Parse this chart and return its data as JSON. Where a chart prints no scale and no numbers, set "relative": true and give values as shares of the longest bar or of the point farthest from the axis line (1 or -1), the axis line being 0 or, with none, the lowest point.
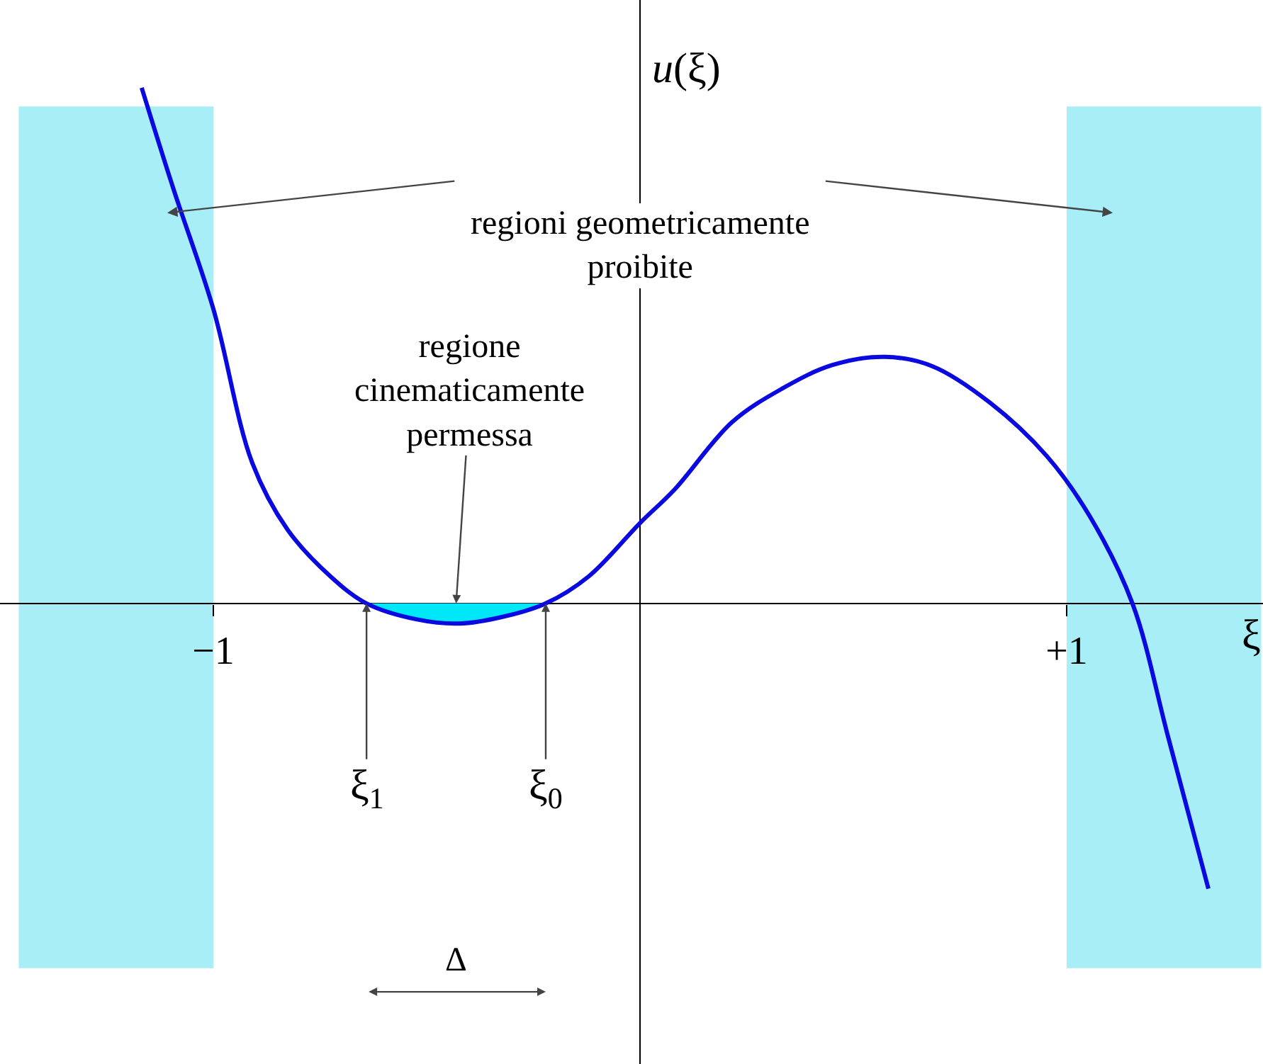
{
  "chart_data": {
    "type": "line",
    "relative": true,
    "xlabel": "ξ",
    "ylabel": "u(ξ)",
    "xlim": [
      -1.5,
      1.46
    ],
    "xticks": [
      {
        "value": -1,
        "label": "−1"
      },
      {
        "value": 1,
        "label": "+1"
      }
    ],
    "grid": false,
    "marker": "none",
    "line_style": "solid",
    "series": [
      {
        "color": "#0a0ae0",
        "x": [
          -1.168,
          -1.094,
          -1.0,
          -0.909,
          -0.826,
          -0.725,
          -0.641,
          -0.523,
          -0.423,
          -0.322,
          -0.221,
          -0.121,
          0,
          0.081,
          0.215,
          0.332,
          0.45,
          0.574,
          0.685,
          0.819,
          0.953,
          1.054,
          1.154,
          1.238,
          1.332
        ],
        "values": [
          1,
          0.805,
          0.571,
          0.273,
          0.143,
          0.052,
          0,
          -0.031,
          -0.039,
          -0.026,
          0,
          0.052,
          0.156,
          0.221,
          0.351,
          0.416,
          0.462,
          0.478,
          0.46,
          0.39,
          0.286,
          0.169,
          0,
          -0.26,
          -0.553
        ]
      },
      {
        "type": "area",
        "color": "#00e8f8",
        "x": [
          -0.641,
          -0.523,
          -0.423,
          -0.322,
          -0.221
        ],
        "values": [
          0,
          -0.031,
          -0.039,
          -0.026,
          0
        ]
      }
    ],
    "bands": [
      {
        "axis": "x",
        "from": -1.456,
        "to": -1.0,
        "color": "#a8eef6"
      },
      {
        "axis": "x",
        "from": 1.0,
        "to": 1.456,
        "color": "#a8eef6"
      }
    ],
    "annotations": [
      "regioni geometricamente\nproibite",
      "regione\ncinematicamente\npermessa",
      {
        "text": "ξ$_{1}$",
        "x": -0.641,
        "y": 0
      },
      {
        "text": "ξ$_{0}$",
        "x": -0.221,
        "y": 0
      },
      "Δ"
    ]
  }
}
